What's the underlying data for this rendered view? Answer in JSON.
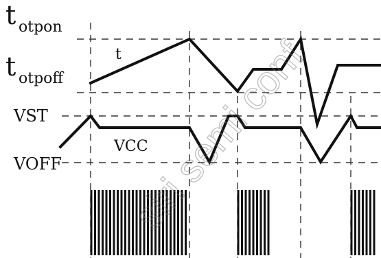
{
  "labels": {
    "t_otpon_main": "t",
    "t_otpon_sub": "otpon",
    "t_otpoff_main": "t",
    "t_otpoff_sub": "otpoff",
    "vst": "VST",
    "voff": "VOFF",
    "vcc": "VCC",
    "t": "t"
  },
  "watermark": {
    "text": "siri semi conf"
  },
  "colors": {
    "ink": "#111111",
    "background": "#ffffff"
  }
}
